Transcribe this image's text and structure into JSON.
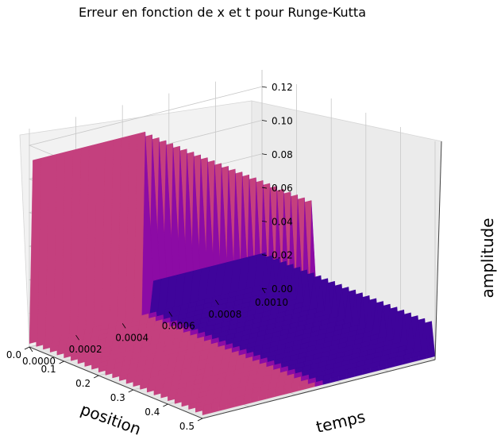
{
  "chart_data": {
    "type": "surface3d",
    "title": "Erreur en fonction de x et t pour Runge-Kutta",
    "xlabel": "position",
    "ylabel": "temps",
    "zlabel": "amplitude",
    "xlim": [
      0.0,
      0.5
    ],
    "ylim": [
      0.0,
      0.001
    ],
    "zlim": [
      0.0,
      0.13
    ],
    "x_ticks": [
      "0.0",
      "0.1",
      "0.2",
      "0.3",
      "0.4",
      "0.5"
    ],
    "y_ticks": [
      "0.0000",
      "0.0002",
      "0.0004",
      "0.0006",
      "0.0008",
      "0.0010"
    ],
    "z_ticks": [
      "0.00",
      "0.02",
      "0.04",
      "0.06",
      "0.08",
      "0.10",
      "0.12"
    ],
    "colormap": "plasma",
    "grid": true,
    "surface": {
      "x_step": 0.01,
      "t_samples": 30,
      "peak_amplitude": 0.12,
      "peak_regions": [
        {
          "x_range": [
            0.0,
            0.5
          ],
          "t_range": [
            0.0,
            0.0005
          ],
          "amplitude": 0.11
        },
        {
          "x_range": [
            0.0,
            0.5
          ],
          "t_range": [
            0.0005,
            0.001
          ],
          "amplitude": 0.02
        }
      ]
    }
  }
}
